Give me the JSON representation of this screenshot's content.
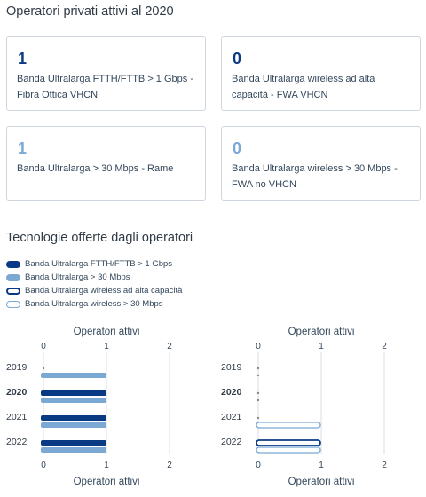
{
  "section1": {
    "title": "Operatori privati attivi al 2020"
  },
  "cards": [
    {
      "value": "1",
      "label": "Banda Ultralarga FTTH/FTTB > 1 Gbps - Fibra Ottica VHCN"
    },
    {
      "value": "0",
      "label": "Banda Ultralarga wireless ad alta capacità - FWA VHCN"
    },
    {
      "value": "1",
      "label": "Banda Ultralarga > 30 Mbps - Rame"
    },
    {
      "value": "0",
      "label": "Banda Ultralarga wireless > 30 Mbps - FWA no VHCN"
    }
  ],
  "section2": {
    "title": "Tecnologie offerte dagli operatori"
  },
  "legend": [
    {
      "label": "Banda Ultralarga FTTH/FTTB > 1 Gbps",
      "style": "dark"
    },
    {
      "label": "Banda Ultralarga > 30 Mbps",
      "style": "light"
    },
    {
      "label": "Banda Ultralarga wireless ad alta capacità",
      "style": "dark-o"
    },
    {
      "label": "Banda Ultralarga wireless > 30 Mbps",
      "style": "light-o"
    }
  ],
  "colors": {
    "dark": "#0b3a84",
    "light": "#7ba9d4",
    "grid": "#d9dee3",
    "text": "#33475b"
  },
  "chart_data": [
    {
      "type": "bar",
      "orientation": "horizontal",
      "xlabel": "Operatori attivi",
      "xlim": [
        0,
        2
      ],
      "xticks": [
        "0",
        "1",
        "2"
      ],
      "categories": [
        "2019",
        "2020",
        "2021",
        "2022"
      ],
      "highlight": "2020",
      "series": [
        {
          "name": "Banda Ultralarga FTTH/FTTB > 1 Gbps",
          "style": "dark",
          "values": [
            0,
            1,
            1,
            1
          ]
        },
        {
          "name": "Banda Ultralarga > 30 Mbps",
          "style": "light",
          "values": [
            1,
            1,
            1,
            1
          ]
        }
      ]
    },
    {
      "type": "bar",
      "orientation": "horizontal",
      "xlabel": "Operatori attivi",
      "xlim": [
        0,
        2
      ],
      "xticks": [
        "0",
        "1",
        "2"
      ],
      "categories": [
        "2019",
        "2020",
        "2021",
        "2022"
      ],
      "highlight": "2020",
      "series": [
        {
          "name": "Banda Ultralarga wireless ad alta capacità",
          "style": "dark-o",
          "values": [
            0,
            0,
            0,
            1
          ]
        },
        {
          "name": "Banda Ultralarga wireless > 30 Mbps",
          "style": "light-o",
          "values": [
            0,
            0,
            1,
            1
          ]
        }
      ]
    }
  ]
}
